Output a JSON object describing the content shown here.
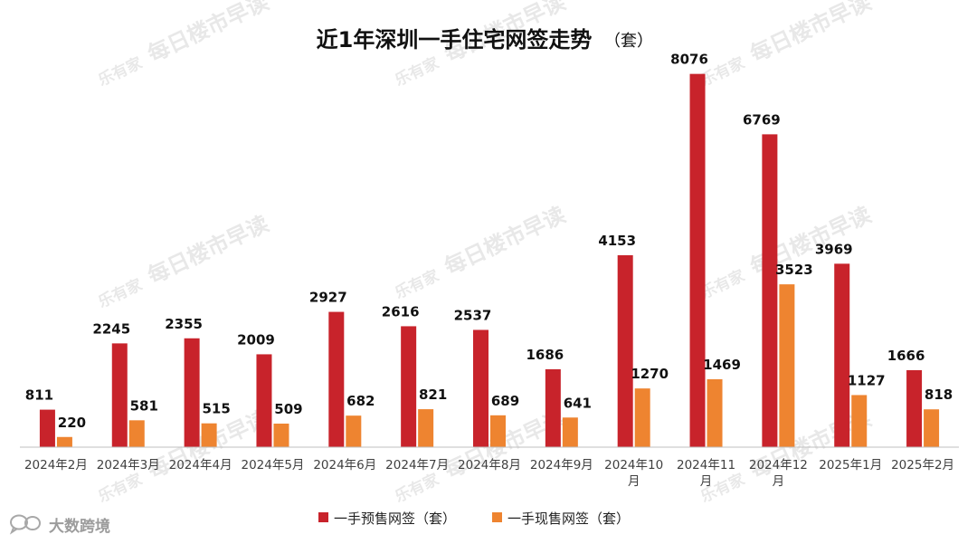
{
  "colors": {
    "presale": "#c8232b",
    "existing": "#ee8430",
    "axis": "#bfbfbf"
  },
  "watermark": {
    "brand": "乐有家",
    "slogan": "每日楼市早读"
  },
  "logo": {
    "icon": "wechat-bubble-icon",
    "text": "大数跨境"
  },
  "chart_data": {
    "type": "bar",
    "title": "近1年深圳一手住宅网签走势",
    "title_unit": "（套）",
    "categories": [
      [
        "2024年2月"
      ],
      [
        "2024年3月"
      ],
      [
        "2024年4月"
      ],
      [
        "2024年5月"
      ],
      [
        "2024年6月"
      ],
      [
        "2024年7月"
      ],
      [
        "2024年8月"
      ],
      [
        "2024年9月"
      ],
      [
        "2024年10",
        "月"
      ],
      [
        "2024年11",
        "月"
      ],
      [
        "2024年12",
        "月"
      ],
      [
        "2025年1月"
      ],
      [
        "2025年2月"
      ]
    ],
    "series": [
      {
        "name": "一手预售网签（套）",
        "color": "#c8232b",
        "values": [
          811,
          2245,
          2355,
          2009,
          2927,
          2616,
          2537,
          1686,
          4153,
          8076,
          6769,
          3969,
          1666
        ]
      },
      {
        "name": "一手现售网签（套）",
        "color": "#ee8430",
        "values": [
          220,
          581,
          515,
          509,
          682,
          821,
          689,
          641,
          1270,
          1469,
          3523,
          1127,
          818
        ]
      }
    ],
    "ylim": [
      0,
      8500
    ],
    "xlabel": "",
    "ylabel": "",
    "grid": false,
    "legend": "bottom-center"
  }
}
